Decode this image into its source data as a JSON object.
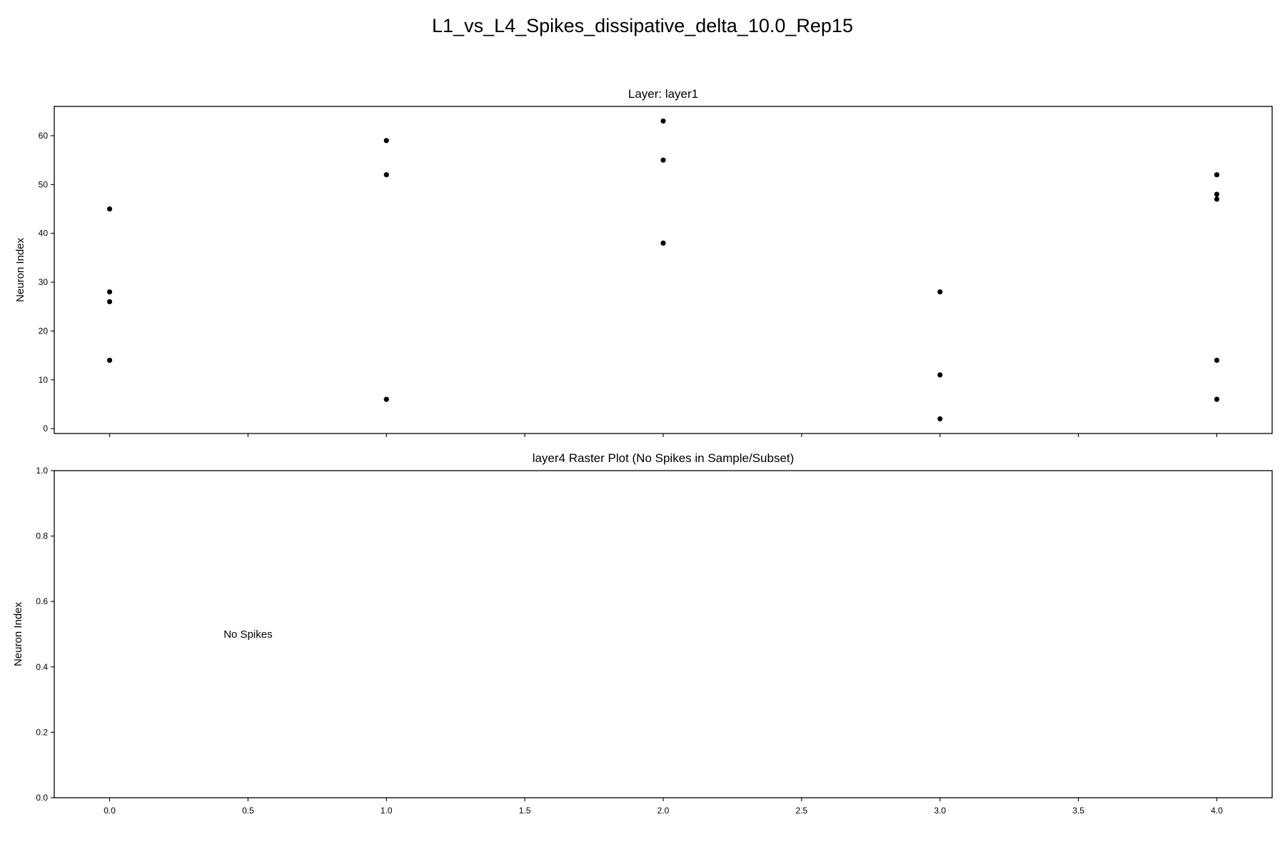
{
  "figure_title": "L1_vs_L4_Spikes_dissipative_delta_10.0_Rep15",
  "chart_data": [
    {
      "type": "scatter",
      "title": "Layer: layer1",
      "xlabel": "",
      "ylabel": "Neuron Index",
      "xlim": [
        -0.2,
        4.2
      ],
      "ylim": [
        -1,
        66
      ],
      "x_ticks": [
        0.0,
        0.5,
        1.0,
        1.5,
        2.0,
        2.5,
        3.0,
        3.5,
        4.0
      ],
      "x_tick_labels_shown": false,
      "y_ticks": [
        0,
        10,
        20,
        30,
        40,
        50,
        60
      ],
      "y_tick_labels": [
        "0",
        "10",
        "20",
        "30",
        "40",
        "50",
        "60"
      ],
      "grid": false,
      "marker_color": "#000000",
      "series": [
        {
          "name": "spikes",
          "points": [
            [
              0,
              45
            ],
            [
              0,
              28
            ],
            [
              0,
              26
            ],
            [
              0,
              14
            ],
            [
              1,
              59
            ],
            [
              1,
              52
            ],
            [
              1,
              6
            ],
            [
              2,
              63
            ],
            [
              2,
              55
            ],
            [
              2,
              38
            ],
            [
              3,
              28
            ],
            [
              3,
              11
            ],
            [
              3,
              2
            ],
            [
              4,
              52
            ],
            [
              4,
              48
            ],
            [
              4,
              47
            ],
            [
              4,
              14
            ],
            [
              4,
              6
            ]
          ]
        }
      ]
    },
    {
      "type": "scatter",
      "title": "layer4 Raster Plot (No Spikes in Sample/Subset)",
      "xlabel": "",
      "ylabel": "Neuron Index",
      "xlim": [
        -0.2,
        4.2
      ],
      "ylim": [
        0,
        1
      ],
      "x_ticks": [
        0.0,
        0.5,
        1.0,
        1.5,
        2.0,
        2.5,
        3.0,
        3.5,
        4.0
      ],
      "x_tick_labels": [
        "0.0",
        "0.5",
        "1.0",
        "1.5",
        "2.0",
        "2.5",
        "3.0",
        "3.5",
        "4.0"
      ],
      "y_ticks": [
        0.0,
        0.2,
        0.4,
        0.6,
        0.8,
        1.0
      ],
      "y_tick_labels": [
        "0.0",
        "0.2",
        "0.4",
        "0.6",
        "0.8",
        "1.0"
      ],
      "grid": false,
      "series": [],
      "annotations": [
        {
          "text": "No Spikes",
          "x": 0.5,
          "y": 0.5
        }
      ]
    }
  ]
}
